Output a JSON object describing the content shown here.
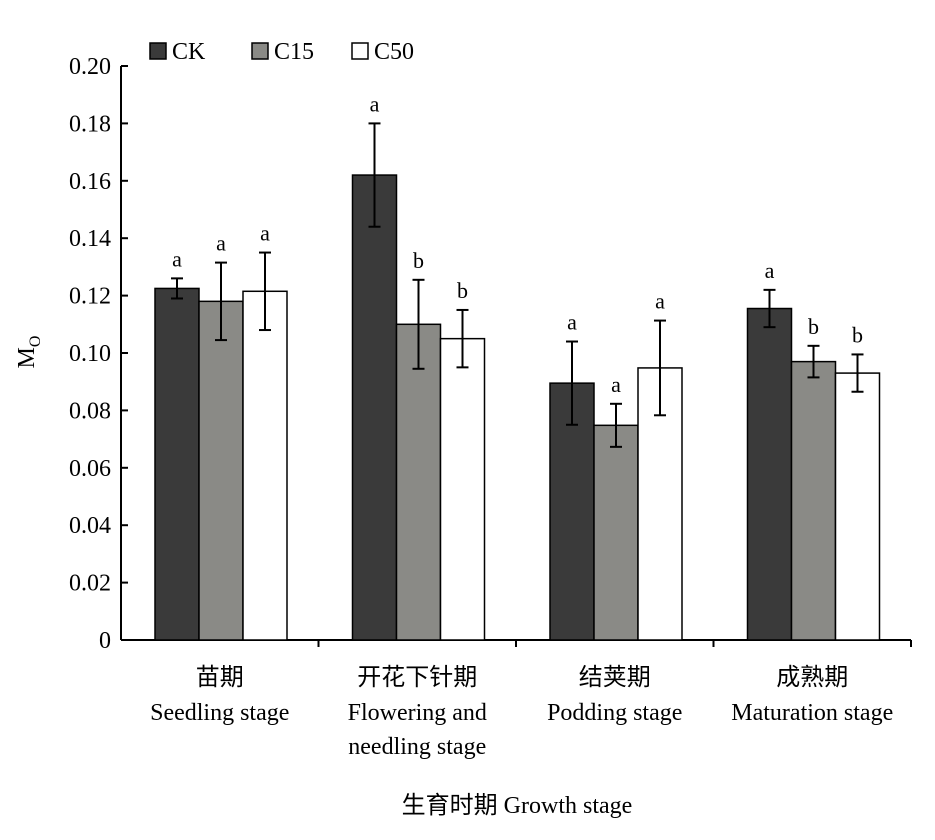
{
  "chart_data": {
    "type": "bar",
    "ylabel": "M",
    "ylabel_sub": "O",
    "xlabel": "生育时期 Growth stage",
    "ylim": [
      0,
      0.2
    ],
    "yticks": [
      "0",
      "0.02",
      "0.04",
      "0.06",
      "0.08",
      "0.10",
      "0.12",
      "0.14",
      "0.16",
      "0.18",
      "0.20"
    ],
    "legend_position": "top-left",
    "grid": false,
    "categories": [
      {
        "zh": "苗期",
        "en": [
          "Seedling stage"
        ]
      },
      {
        "zh": "开花下针期",
        "en": [
          "Flowering and",
          "needling stage"
        ]
      },
      {
        "zh": "结荚期",
        "en": [
          "Podding stage"
        ]
      },
      {
        "zh": "成熟期",
        "en": [
          "Maturation stage"
        ]
      }
    ],
    "series": [
      {
        "name": "CK",
        "color": "#3a3a3a",
        "values": [
          0.1225,
          0.162,
          0.0895,
          0.1155
        ],
        "errors": [
          0.0035,
          0.018,
          0.0145,
          0.0065
        ],
        "letters": [
          "a",
          "a",
          "a",
          "a"
        ]
      },
      {
        "name": "C15",
        "color": "#8a8a86",
        "values": [
          0.118,
          0.11,
          0.0748,
          0.097
        ],
        "errors": [
          0.0135,
          0.0155,
          0.0075,
          0.0055
        ],
        "letters": [
          "a",
          "b",
          "a",
          "b"
        ]
      },
      {
        "name": "C50",
        "color": "#ffffff",
        "values": [
          0.1215,
          0.105,
          0.0948,
          0.093
        ],
        "errors": [
          0.0135,
          0.01,
          0.0165,
          0.0065
        ],
        "letters": [
          "a",
          "b",
          "a",
          "b"
        ]
      }
    ]
  }
}
